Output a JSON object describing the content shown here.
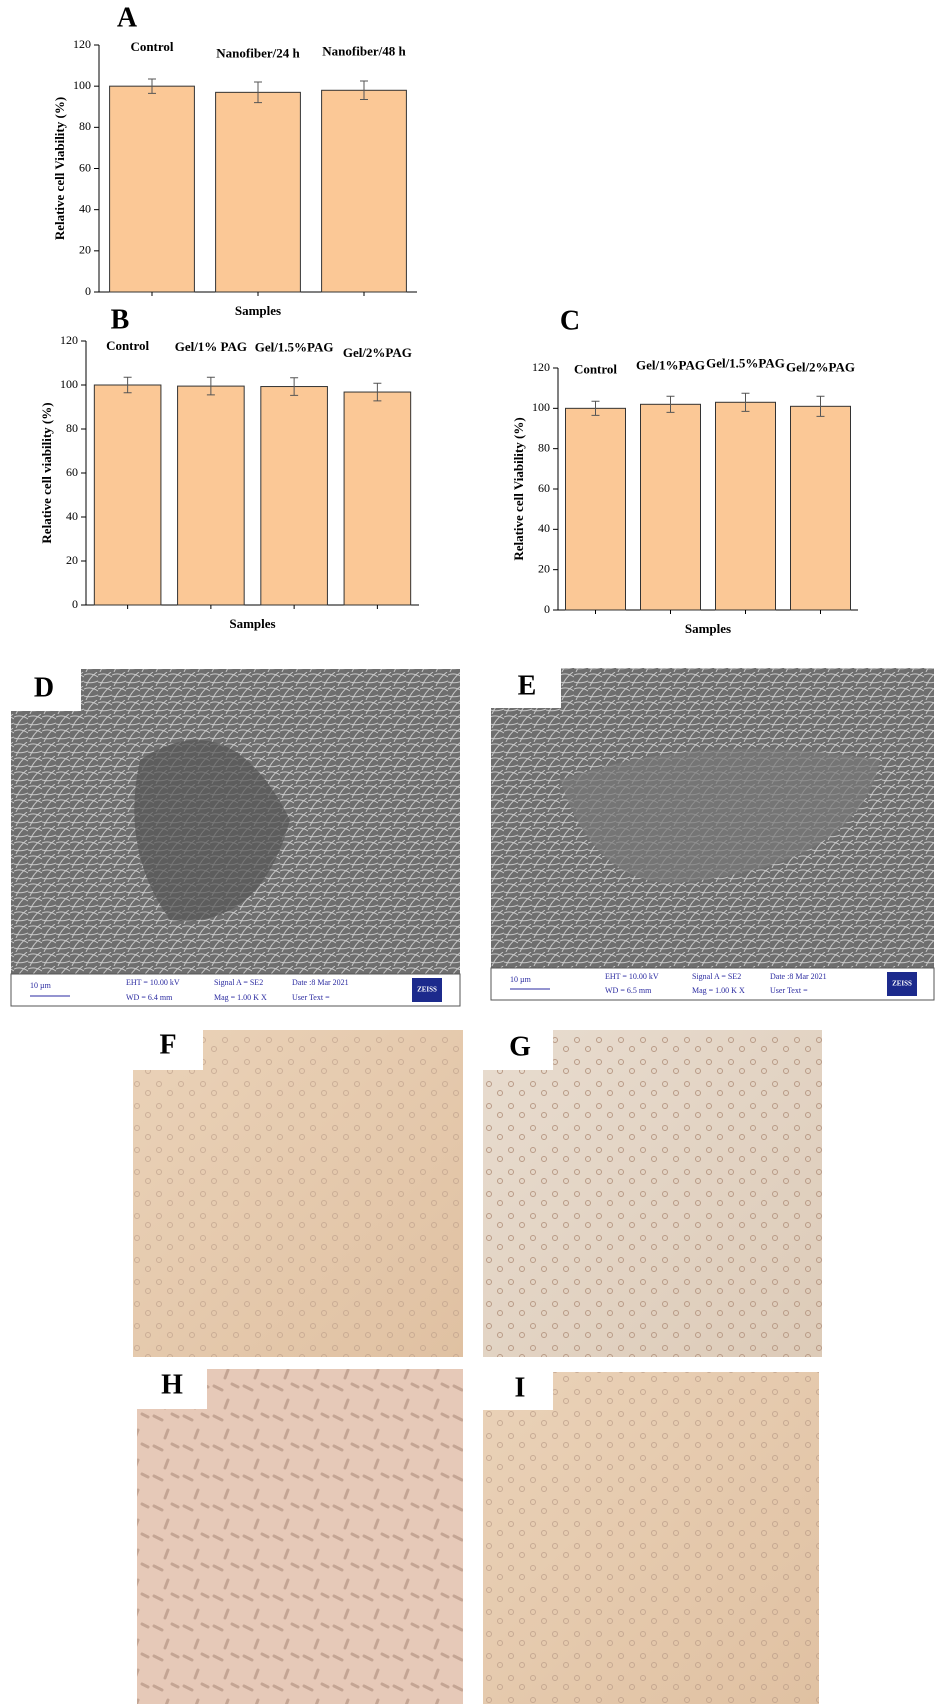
{
  "chart_data": [
    {
      "type": "bar",
      "label": "A",
      "categories": [
        "Control",
        "Nanofiber/24 h",
        "Nanofiber/48 h"
      ],
      "values": [
        100,
        97,
        98
      ],
      "errors": [
        3.5,
        5,
        4.5
      ],
      "color": "#fbc896",
      "xlabel": "Samples",
      "ylabel": "Relative cell Viability (%)",
      "ylim": [
        0,
        120
      ],
      "yticks": [
        0,
        20,
        40,
        60,
        80,
        100,
        120
      ]
    },
    {
      "type": "bar",
      "label": "B",
      "categories": [
        "Control",
        "Gel/1% PAG",
        "Gel/1.5%PAG",
        "Gel/2%PAG"
      ],
      "values": [
        100,
        99.5,
        99.3,
        96.8
      ],
      "errors": [
        3.5,
        4,
        4,
        4
      ],
      "color": "#fbc896",
      "xlabel": "Samples",
      "ylabel": "Relative cell viability (%)",
      "ylim": [
        0,
        120
      ],
      "yticks": [
        0,
        20,
        40,
        60,
        80,
        100,
        120
      ]
    },
    {
      "type": "bar",
      "label": "C",
      "categories": [
        "Control",
        "Gel/1%PAG",
        "Gel/1.5%PAG",
        "Gel/2%PAG"
      ],
      "values": [
        100,
        102,
        103,
        101
      ],
      "errors": [
        3.5,
        4,
        4.5,
        5
      ],
      "color": "#fbc896",
      "xlabel": "Samples",
      "ylabel": "Relative cell Viability (%)",
      "ylim": [
        0,
        120
      ],
      "yticks": [
        0,
        20,
        40,
        60,
        80,
        100,
        120
      ]
    }
  ],
  "images": [
    {
      "label": "D",
      "scale": "10 µm",
      "eht": "EHT = 10.00 kV",
      "wd": "WD =  6.4 mm",
      "signal": "Signal A = SE2",
      "mag": "Mag =   1.00 K X",
      "date": "Date :8 Mar 2021",
      "user": "User Text =",
      "brand": "ZEISS"
    },
    {
      "label": "E",
      "scale": "10 µm",
      "eht": "EHT = 10.00 kV",
      "wd": "WD =  6.5 mm",
      "signal": "Signal A = SE2",
      "mag": "Mag =   1.00 K X",
      "date": "Date :8 Mar 2021",
      "user": "User Text =",
      "brand": "ZEISS"
    },
    {
      "label": "F"
    },
    {
      "label": "G"
    },
    {
      "label": "H"
    },
    {
      "label": "I"
    }
  ]
}
